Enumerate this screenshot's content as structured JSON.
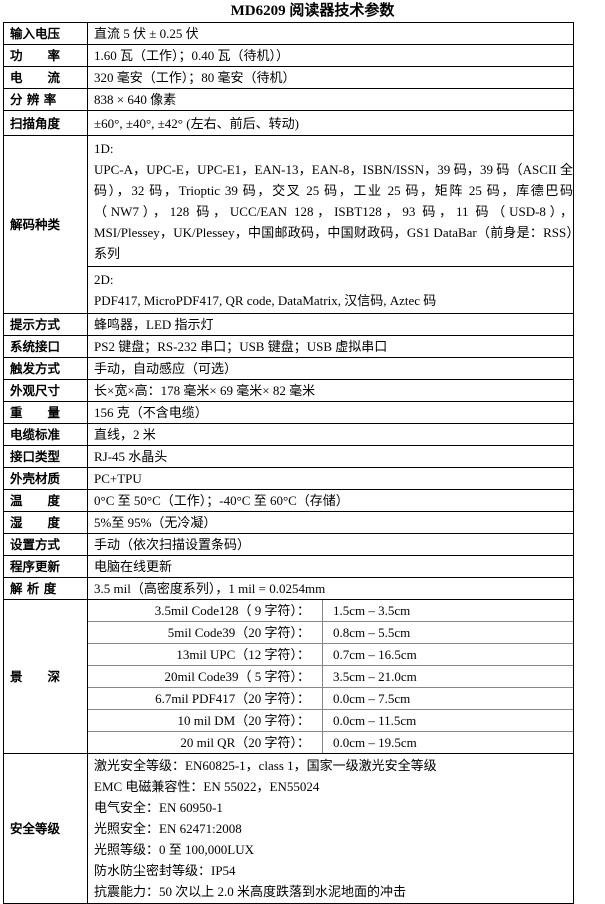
{
  "title": "MD6209 阅读器技术参数",
  "rows": [
    {
      "label": "输入电压",
      "value": "直流 5 伏 ± 0.25 伏"
    },
    {
      "label": "功　　率",
      "value": "1.60 瓦（工作）；0.40 瓦（待机））"
    },
    {
      "label": "电　　流",
      "value": "320 毫安（工作）；80 毫安（待机）"
    },
    {
      "label": "分 辨 率",
      "value": "838 × 640 像素"
    },
    {
      "label": "扫描角度",
      "value": "±60°, ±40°, ±42° (左右、前后、转动)"
    }
  ],
  "decode": {
    "label": "解码种类",
    "d1_title": "1D:",
    "d1_text": "UPC-A，UPC-E，UPC-E1，EAN-13，EAN-8，ISBN/ISSN，39 码，39 码（ASCII 全码），32 码，Trioptic 39 码，交叉 25 码，工业 25 码，矩阵 25 码，库德巴码（NW7），128 码，UCC/EAN 128，ISBT128，93 码，11 码（USD-8），MSI/Plessey，UK/Plessey，中国邮政码，中国财政码，GS1 DataBar（前身是：RSS）系列",
    "d2_title": "2D:",
    "d2_text": "PDF417, MicroPDF417, QR code, DataMatrix, 汉信码, Aztec 码"
  },
  "rows2": [
    {
      "label": "提示方式",
      "value": "蜂鸣器，LED 指示灯"
    },
    {
      "label": "系统接口",
      "value": "PS2 键盘；RS-232 串口；USB 键盘；USB 虚拟串口"
    },
    {
      "label": "触发方式",
      "value": "手动，自动感应（可选）"
    },
    {
      "label": "外观尺寸",
      "value": "长×宽×高：178 毫米× 69 毫米× 82 毫米"
    },
    {
      "label": "重　　量",
      "value": "156 克（不含电缆）"
    },
    {
      "label": "电缆标准",
      "value": "直线，2 米"
    },
    {
      "label": "接口类型",
      "value": "RJ-45 水晶头"
    },
    {
      "label": "外壳材质",
      "value": "PC+TPU"
    },
    {
      "label": "温　　度",
      "value": "0°C 至 50°C（工作）；-40°C 至 60°C（存储）"
    },
    {
      "label": "湿　　度",
      "value": "5%至 95%（无冷凝）"
    },
    {
      "label": "设置方式",
      "value": "手动（依次扫描设置条码）"
    },
    {
      "label": "程序更新",
      "value": "电脑在线更新"
    },
    {
      "label": "解 析 度",
      "value": "3.5 mil（高密度系列），1 mil = 0.0254mm"
    }
  ],
  "depth": {
    "label": "景　　深",
    "items": [
      {
        "code": "3.5mil  Code128（ 9 字符）：",
        "range": "1.5cm – 3.5cm"
      },
      {
        "code": "5mil  Code39（20 字符）：",
        "range": "0.8cm – 5.5cm"
      },
      {
        "code": "13mil  UPC（12 字符）：",
        "range": "0.7cm – 16.5cm"
      },
      {
        "code": "20mil  Code39（ 5 字符）：",
        "range": "3.5cm – 21.0cm"
      },
      {
        "code": "6.7mil  PDF417（20 字符）：",
        "range": "0.0cm – 7.5cm"
      },
      {
        "code": "10 mil DM（20 字符）：",
        "range": "0.0cm – 11.5cm"
      },
      {
        "code": "20  mil  QR（20 字符）：",
        "range": "0.0cm – 19.5cm"
      }
    ]
  },
  "safety": {
    "label": "安全等级",
    "lines": [
      "激光安全等级：EN60825-1，class 1，国家一级激光安全等级",
      "EMC 电磁兼容性：EN 55022，EN55024",
      "电气安全：EN 60950-1",
      "光照安全：EN 62471:2008",
      "光照等级：0 至 100,000LUX",
      "防水防尘密封等级：IP54",
      "抗震能力：50 次以上 2.0 米高度跌落到水泥地面的冲击"
    ]
  }
}
